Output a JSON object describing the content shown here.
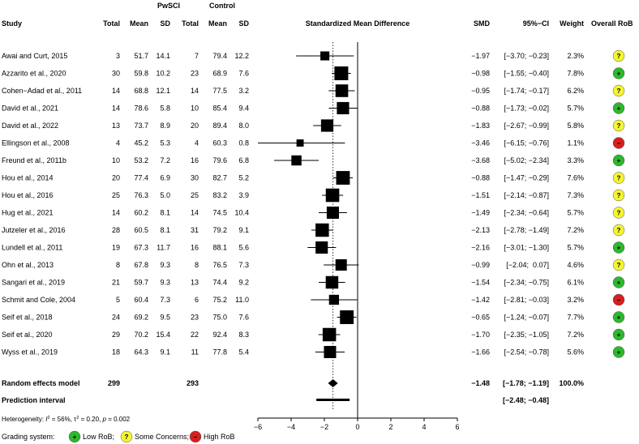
{
  "chart_data": {
    "type": "forest",
    "title": "Standardized Mean Difference",
    "group_headers": {
      "treatment": "PwSCI",
      "control": "Control"
    },
    "columns": [
      "Study",
      "Total",
      "Mean",
      "SD",
      "Total",
      "Mean",
      "SD",
      "Standardized Mean Difference",
      "SMD",
      "95%−CI",
      "Weight",
      "Overall RoB"
    ],
    "xlim": [
      -6,
      6
    ],
    "xticks": [
      "−6",
      "−4",
      "−2",
      "0",
      "2",
      "4",
      "6"
    ],
    "xtick_values": [
      -6,
      -4,
      -2,
      0,
      2,
      4,
      6
    ],
    "pooled_line_value": -1.48,
    "studies": [
      {
        "study": "Awai and Curt, 2015",
        "n_t": "3",
        "mean_t": "51.7",
        "sd_t": "14.1",
        "n_c": "7",
        "mean_c": "79.4",
        "sd_c": "12.2",
        "smd": -1.97,
        "lo": -3.7,
        "hi": -0.23,
        "smd_txt": "−1.97",
        "ci_txt": "[−3.70; −0.23]",
        "weight": 2.3,
        "weight_txt": "2.3%",
        "rob": "some"
      },
      {
        "study": "Azzarito et al., 2020",
        "n_t": "30",
        "mean_t": "59.8",
        "sd_t": "10.2",
        "n_c": "23",
        "mean_c": "68.9",
        "sd_c": "7.6",
        "smd": -0.98,
        "lo": -1.55,
        "hi": -0.4,
        "smd_txt": "−0.98",
        "ci_txt": "[−1.55; −0.40]",
        "weight": 7.8,
        "weight_txt": "7.8%",
        "rob": "low"
      },
      {
        "study": "Cohen−Adad et al., 2011",
        "n_t": "14",
        "mean_t": "68.8",
        "sd_t": "12.1",
        "n_c": "14",
        "mean_c": "77.5",
        "sd_c": "3.2",
        "smd": -0.95,
        "lo": -1.74,
        "hi": -0.17,
        "smd_txt": "−0.95",
        "ci_txt": "[−1.74; −0.17]",
        "weight": 6.2,
        "weight_txt": "6.2%",
        "rob": "some"
      },
      {
        "study": "David et al., 2021",
        "n_t": "14",
        "mean_t": "78.6",
        "sd_t": "5.8",
        "n_c": "10",
        "mean_c": "85.4",
        "sd_c": "9.4",
        "smd": -0.88,
        "lo": -1.73,
        "hi": -0.02,
        "smd_txt": "−0.88",
        "ci_txt": "[−1.73; −0.02]",
        "weight": 5.7,
        "weight_txt": "5.7%",
        "rob": "low"
      },
      {
        "study": "David et al., 2022",
        "n_t": "13",
        "mean_t": "73.7",
        "sd_t": "8.9",
        "n_c": "20",
        "mean_c": "89.4",
        "sd_c": "8.0",
        "smd": -1.83,
        "lo": -2.67,
        "hi": -0.99,
        "smd_txt": "−1.83",
        "ci_txt": "[−2.67; −0.99]",
        "weight": 5.8,
        "weight_txt": "5.8%",
        "rob": "some"
      },
      {
        "study": "Ellingson et al., 2008",
        "n_t": "4",
        "mean_t": "45.2",
        "sd_t": "5.3",
        "n_c": "4",
        "mean_c": "60.3",
        "sd_c": "0.8",
        "smd": -3.46,
        "lo": -6.15,
        "hi": -0.76,
        "smd_txt": "−3.46",
        "ci_txt": "[−6.15; −0.76]",
        "weight": 1.1,
        "weight_txt": "1.1%",
        "rob": "high"
      },
      {
        "study": "Freund et al., 2011b",
        "n_t": "10",
        "mean_t": "53.2",
        "sd_t": "7.2",
        "n_c": "16",
        "mean_c": "79.6",
        "sd_c": "6.8",
        "smd": -3.68,
        "lo": -5.02,
        "hi": -2.34,
        "smd_txt": "−3.68",
        "ci_txt": "[−5.02; −2.34]",
        "weight": 3.3,
        "weight_txt": "3.3%",
        "rob": "low"
      },
      {
        "study": "Hou et al., 2014",
        "n_t": "20",
        "mean_t": "77.4",
        "sd_t": "6.9",
        "n_c": "30",
        "mean_c": "82.7",
        "sd_c": "5.2",
        "smd": -0.88,
        "lo": -1.47,
        "hi": -0.29,
        "smd_txt": "−0.88",
        "ci_txt": "[−1.47; −0.29]",
        "weight": 7.6,
        "weight_txt": "7.6%",
        "rob": "some"
      },
      {
        "study": "Hou et al., 2016",
        "n_t": "25",
        "mean_t": "76.3",
        "sd_t": "5.0",
        "n_c": "25",
        "mean_c": "83.2",
        "sd_c": "3.9",
        "smd": -1.51,
        "lo": -2.14,
        "hi": -0.87,
        "smd_txt": "−1.51",
        "ci_txt": "[−2.14; −0.87]",
        "weight": 7.3,
        "weight_txt": "7.3%",
        "rob": "some"
      },
      {
        "study": "Hug et al., 2021",
        "n_t": "14",
        "mean_t": "60.2",
        "sd_t": "8.1",
        "n_c": "14",
        "mean_c": "74.5",
        "sd_c": "10.4",
        "smd": -1.49,
        "lo": -2.34,
        "hi": -0.64,
        "smd_txt": "−1.49",
        "ci_txt": "[−2.34; −0.64]",
        "weight": 5.7,
        "weight_txt": "5.7%",
        "rob": "some"
      },
      {
        "study": "Jutzeler et al., 2016",
        "n_t": "28",
        "mean_t": "60.5",
        "sd_t": "8.1",
        "n_c": "31",
        "mean_c": "79.2",
        "sd_c": "9.1",
        "smd": -2.13,
        "lo": -2.78,
        "hi": -1.49,
        "smd_txt": "−2.13",
        "ci_txt": "[−2.78; −1.49]",
        "weight": 7.2,
        "weight_txt": "7.2%",
        "rob": "some"
      },
      {
        "study": "Lundell et al., 2011",
        "n_t": "19",
        "mean_t": "67.3",
        "sd_t": "11.7",
        "n_c": "16",
        "mean_c": "88.1",
        "sd_c": "5.6",
        "smd": -2.16,
        "lo": -3.01,
        "hi": -1.3,
        "smd_txt": "−2.16",
        "ci_txt": "[−3.01; −1.30]",
        "weight": 5.7,
        "weight_txt": "5.7%",
        "rob": "low"
      },
      {
        "study": "Ohn et al., 2013",
        "n_t": "8",
        "mean_t": "67.8",
        "sd_t": "9.3",
        "n_c": "8",
        "mean_c": "76.5",
        "sd_c": "7.3",
        "smd": -0.99,
        "lo": -2.04,
        "hi": 0.07,
        "smd_txt": "−0.99",
        "ci_txt": "[−2.04;  0.07]",
        "weight": 4.6,
        "weight_txt": "4.6%",
        "rob": "some"
      },
      {
        "study": "Sangari et al., 2019",
        "n_t": "21",
        "mean_t": "59.7",
        "sd_t": "9.3",
        "n_c": "13",
        "mean_c": "74.4",
        "sd_c": "9.2",
        "smd": -1.54,
        "lo": -2.34,
        "hi": -0.75,
        "smd_txt": "−1.54",
        "ci_txt": "[−2.34; −0.75]",
        "weight": 6.1,
        "weight_txt": "6.1%",
        "rob": "low"
      },
      {
        "study": "Schmit and Cole, 2004",
        "n_t": "5",
        "mean_t": "60.4",
        "sd_t": "7.3",
        "n_c": "6",
        "mean_c": "75.2",
        "sd_c": "11.0",
        "smd": -1.42,
        "lo": -2.81,
        "hi": -0.03,
        "smd_txt": "−1.42",
        "ci_txt": "[−2.81; −0.03]",
        "weight": 3.2,
        "weight_txt": "3.2%",
        "rob": "high"
      },
      {
        "study": "Seif et al., 2018",
        "n_t": "24",
        "mean_t": "69.2",
        "sd_t": "9.5",
        "n_c": "23",
        "mean_c": "75.0",
        "sd_c": "7.6",
        "smd": -0.65,
        "lo": -1.24,
        "hi": -0.07,
        "smd_txt": "−0.65",
        "ci_txt": "[−1.24; −0.07]",
        "weight": 7.7,
        "weight_txt": "7.7%",
        "rob": "low"
      },
      {
        "study": "Seif et al., 2020",
        "n_t": "29",
        "mean_t": "70.2",
        "sd_t": "15.4",
        "n_c": "22",
        "mean_c": "92.4",
        "sd_c": "8.3",
        "smd": -1.7,
        "lo": -2.35,
        "hi": -1.05,
        "smd_txt": "−1.70",
        "ci_txt": "[−2.35; −1.05]",
        "weight": 7.2,
        "weight_txt": "7.2%",
        "rob": "low"
      },
      {
        "study": "Wyss et al., 2019",
        "n_t": "18",
        "mean_t": "64.3",
        "sd_t": "9.1",
        "n_c": "11",
        "mean_c": "77.8",
        "sd_c": "5.4",
        "smd": -1.66,
        "lo": -2.54,
        "hi": -0.78,
        "smd_txt": "−1.66",
        "ci_txt": "[−2.54; −0.78]",
        "weight": 5.6,
        "weight_txt": "5.6%",
        "rob": "low"
      }
    ],
    "summary": {
      "label": "Random effects model",
      "n_t": "299",
      "n_c": "293",
      "smd": -1.48,
      "lo": -1.78,
      "hi": -1.19,
      "smd_txt": "−1.48",
      "ci_txt": "[−1.78; −1.19]",
      "weight_txt": "100.0%"
    },
    "prediction": {
      "label": "Prediction interval",
      "lo": -2.48,
      "hi": -0.48,
      "ci_txt": "[−2.48; −0.48]"
    },
    "heterogeneity": {
      "prefix": "Heterogeneity: ",
      "i2_symbol": "I",
      "i2_value": " = 56%, ",
      "tau_symbol": "τ",
      "tau_value": " = 0.20, ",
      "p_symbol": "p",
      "p_value": " = 0.002"
    },
    "grading_legend": {
      "label": "Grading system:",
      "items": [
        {
          "key": "low",
          "symbol": "+",
          "text": "Low RoB;",
          "color": "#2db82d"
        },
        {
          "key": "some",
          "symbol": "?",
          "text": "Some Concerns;",
          "color": "#f5f531"
        },
        {
          "key": "high",
          "symbol": "−",
          "text": "High RoB",
          "color": "#d61f1f"
        }
      ]
    },
    "rob_symbols": {
      "low": "+",
      "some": "?",
      "high": "−"
    },
    "colors": {
      "low": "#2db82d",
      "some": "#f5f531",
      "high": "#d61f1f",
      "marker": "#000000"
    }
  }
}
